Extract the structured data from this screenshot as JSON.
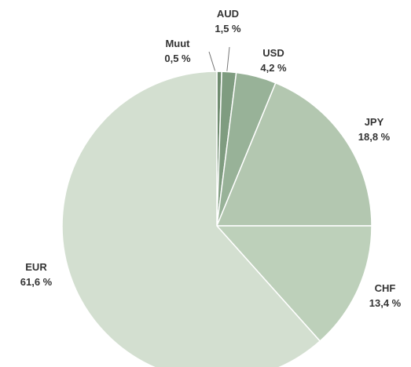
{
  "chart_data": {
    "type": "pie",
    "categories": [
      "Muut",
      "AUD",
      "USD",
      "JPY",
      "CHF",
      "EUR"
    ],
    "values": [
      0.5,
      1.5,
      4.2,
      18.8,
      13.4,
      61.6
    ],
    "value_labels": [
      "0,5 %",
      "1,5 %",
      "4,2 %",
      "18,8 %",
      "13,4 %",
      "61,6 %"
    ],
    "colors": [
      "#6f8c6f",
      "#7f9c80",
      "#98b298",
      "#b3c7b0",
      "#bdd0ba",
      "#d3dfd0"
    ]
  }
}
